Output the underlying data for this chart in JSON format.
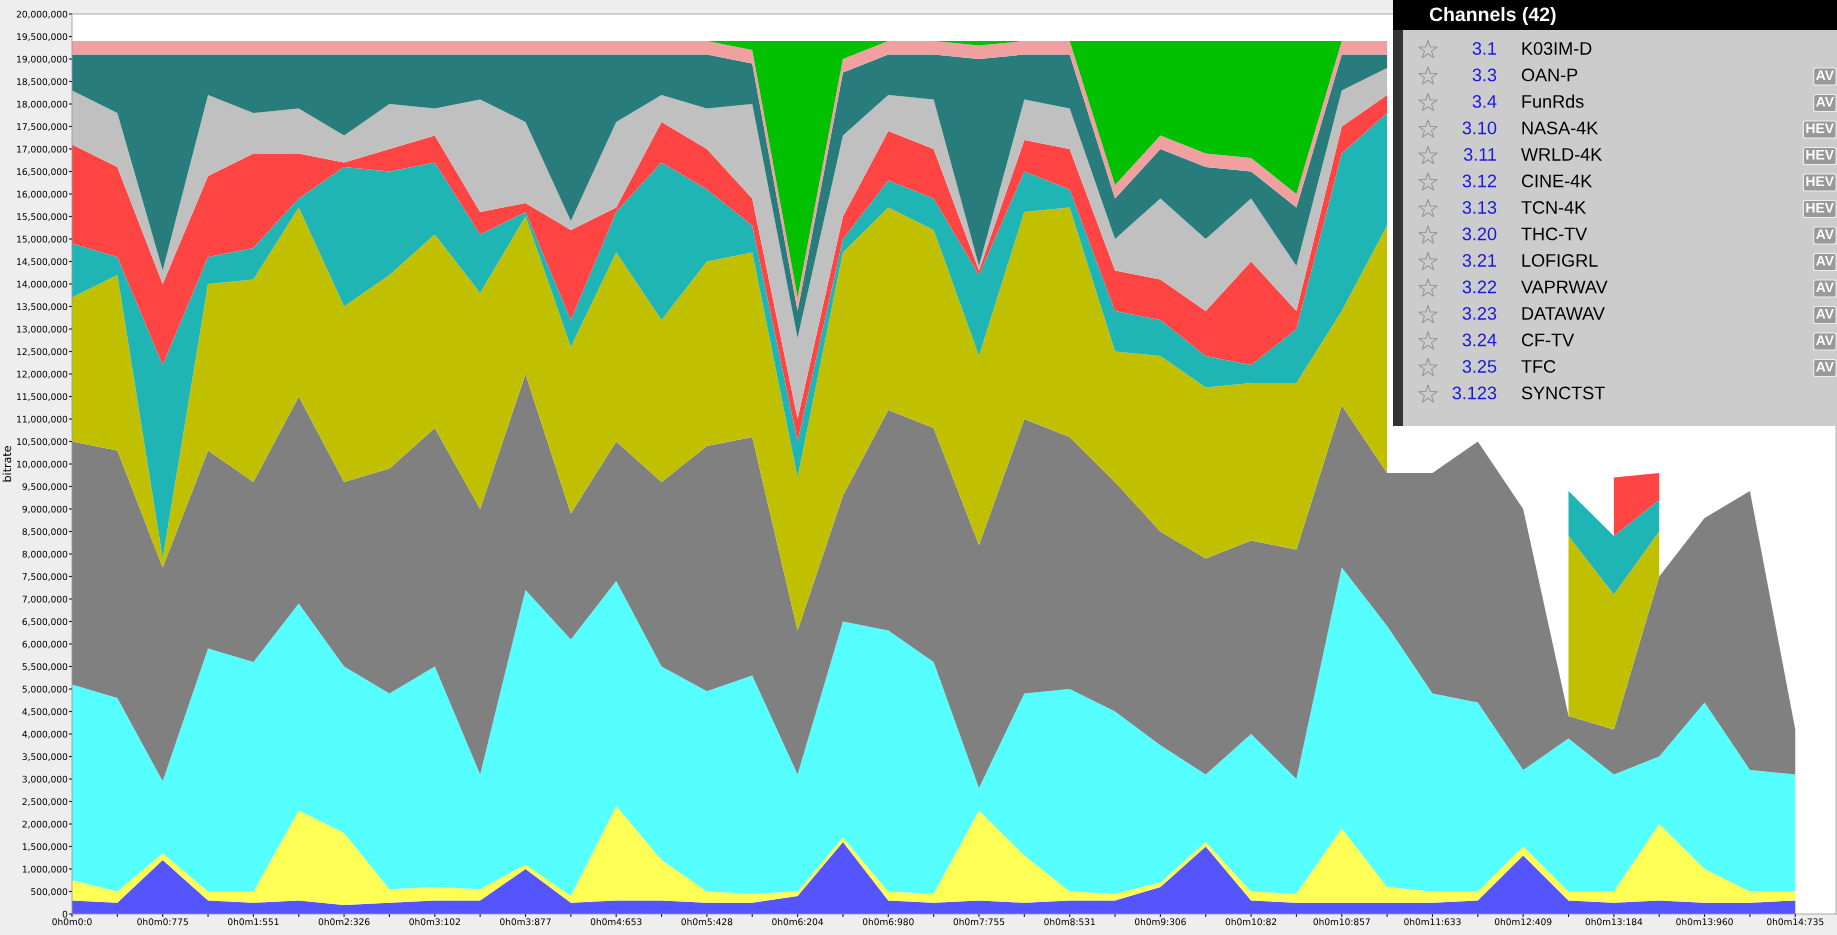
{
  "chart_data": {
    "type": "area",
    "stacked": true,
    "ylabel": "bitrate",
    "categories": [
      "0h0m0:0",
      null,
      "0h0m0:775",
      null,
      "0h0m1:551",
      null,
      "0h0m2:326",
      null,
      "0h0m3:102",
      null,
      "0h0m3:877",
      null,
      "0h0m4:653",
      null,
      "0h0m5:428",
      null,
      "0h0m6:204",
      null,
      "0h0m6:980",
      null,
      "0h0m7:755",
      null,
      "0h0m8:531",
      null,
      "0h0m9:306",
      null,
      "0h0m10:82",
      null,
      "0h0m10:857",
      null,
      "0h0m11:633",
      null,
      "0h0m12:409",
      null,
      "0h0m13:184",
      null,
      "0h0m13:960",
      null,
      "0h0m14:735"
    ],
    "ylim": [
      0,
      20000000
    ],
    "yticks": [
      0,
      {
        "value": 500000,
        "label": "500,000"
      },
      {
        "value": 1000000,
        "label": "1,000,000"
      },
      {
        "value": 1500000,
        "label": "1,500,000"
      },
      {
        "value": 2000000,
        "label": "2,000,000"
      },
      {
        "value": 2500000,
        "label": "2,500,000"
      },
      {
        "value": 3000000,
        "label": "3,000,000"
      },
      {
        "value": 3500000,
        "label": "3,500,000"
      },
      {
        "value": 4000000,
        "label": "4,000,000"
      },
      {
        "value": 4500000,
        "label": "4,500,000"
      },
      {
        "value": 5000000,
        "label": "5,000,000"
      },
      {
        "value": 5500000,
        "label": "5,500,000"
      },
      {
        "value": 6000000,
        "label": "6,000,000"
      },
      {
        "value": 6500000,
        "label": "6,500,000"
      },
      {
        "value": 7000000,
        "label": "7,000,000"
      },
      {
        "value": 7500000,
        "label": "7,500,000"
      },
      {
        "value": 8000000,
        "label": "8,000,000"
      },
      {
        "value": 8500000,
        "label": "8,500,000"
      },
      {
        "value": 9000000,
        "label": "9,000,000"
      },
      {
        "value": 9500000,
        "label": "9,500,000"
      },
      {
        "value": 10000000,
        "label": "10,000,000"
      },
      {
        "value": 10500000,
        "label": "10,500,000"
      },
      {
        "value": 11000000,
        "label": "11,000,000"
      },
      {
        "value": 11500000,
        "label": "11,500,000"
      },
      {
        "value": 12000000,
        "label": "12,000,000"
      },
      {
        "value": 12500000,
        "label": "12,500,000"
      },
      {
        "value": 13000000,
        "label": "13,000,000"
      },
      {
        "value": 13500000,
        "label": "13,500,000"
      },
      {
        "value": 14000000,
        "label": "14,000,000"
      },
      {
        "value": 14500000,
        "label": "14,500,000"
      },
      {
        "value": 15000000,
        "label": "15,000,000"
      },
      {
        "value": 15500000,
        "label": "15,500,000"
      },
      {
        "value": 16000000,
        "label": "16,000,000"
      },
      {
        "value": 16500000,
        "label": "16,500,000"
      },
      {
        "value": 17000000,
        "label": "17,000,000"
      },
      {
        "value": 17500000,
        "label": "17,500,000"
      },
      {
        "value": 18000000,
        "label": "18,000,000"
      },
      {
        "value": 18500000,
        "label": "18,500,000"
      },
      {
        "value": 19000000,
        "label": "19,000,000"
      },
      {
        "value": 19500000,
        "label": "19,500,000"
      },
      {
        "value": 20000000,
        "label": "20,000,000"
      }
    ],
    "series": [
      {
        "color": "#5555ff",
        "values": [
          300000,
          250000,
          1200000,
          300000,
          250000,
          300000,
          200000,
          250000,
          300000,
          300000,
          1000000,
          250000,
          300000,
          300000,
          250000,
          250000,
          400000,
          1600000,
          300000,
          250000,
          300000,
          250000,
          300000,
          300000,
          600000,
          1500000,
          300000,
          250000,
          250000,
          250000,
          250000,
          300000,
          1300000,
          300000,
          250000,
          300000,
          250000,
          250000,
          300000
        ]
      },
      {
        "color": "#ffff55",
        "values": [
          450000,
          250000,
          150000,
          200000,
          250000,
          2000000,
          1600000,
          300000,
          300000,
          250000,
          100000,
          150000,
          2100000,
          900000,
          250000,
          200000,
          100000,
          100000,
          200000,
          200000,
          2000000,
          1050000,
          200000,
          150000,
          100000,
          100000,
          200000,
          200000,
          1650000,
          350000,
          250000,
          200000,
          200000,
          200000,
          250000,
          1700000,
          750000,
          250000,
          200000
        ]
      },
      {
        "color": "#55ffff",
        "values": [
          4350000,
          4300000,
          1600000,
          5400000,
          5100000,
          4600000,
          3700000,
          4350000,
          4900000,
          2550000,
          6100000,
          5700000,
          5000000,
          4300000,
          4450000,
          4850000,
          2600000,
          4800000,
          5800000,
          5150000,
          500000,
          3600000,
          4500000,
          4050000,
          3050000,
          1500000,
          3500000,
          2550000,
          5800000,
          5800000,
          4400000,
          4200000,
          1700000,
          3400000,
          2600000,
          1500000,
          3700000,
          2700000,
          2600000
        ]
      },
      {
        "color": "#808080",
        "values": [
          5400000,
          5500000,
          4750000,
          4400000,
          4000000,
          4600000,
          4100000,
          5000000,
          5300000,
          5900000,
          4800000,
          2800000,
          3100000,
          4100000,
          5450000,
          5300000,
          3200000,
          2800000,
          4900000,
          5200000,
          5400000,
          6100000,
          5600000,
          5100000,
          4750000,
          4800000,
          4300000,
          5100000,
          3600000,
          3400000,
          4900000,
          5800000,
          5800000,
          500000,
          1000000,
          4000000,
          4100000,
          6200000,
          1000000
        ]
      },
      {
        "color": "#c0c000",
        "values": [
          3200000,
          3900000,
          200000,
          3700000,
          4500000,
          4200000,
          3900000,
          4300000,
          4300000,
          4800000,
          3500000,
          3700000,
          4200000,
          3600000,
          4100000,
          4100000,
          3400000,
          5400000,
          4500000,
          4400000,
          4200000,
          4600000,
          5100000,
          2900000,
          3900000,
          3800000,
          3500000,
          3700000,
          2100000,
          5500000,
          null,
          null,
          null,
          4000000,
          3000000,
          1000000,
          null,
          null,
          null
        ]
      },
      {
        "color": "#20b5b5",
        "values": [
          1200000,
          400000,
          4300000,
          600000,
          700000,
          200000,
          3100000,
          2300000,
          1600000,
          1300000,
          100000,
          600000,
          900000,
          3500000,
          1600000,
          600000,
          800000,
          300000,
          600000,
          700000,
          1800000,
          900000,
          400000,
          900000,
          800000,
          700000,
          400000,
          1200000,
          3500000,
          2500000,
          null,
          null,
          null,
          1000000,
          1300000,
          700000,
          null,
          null,
          null
        ]
      },
      {
        "color": "#ff4444",
        "values": [
          2200000,
          2000000,
          1800000,
          1800000,
          2100000,
          1000000,
          100000,
          500000,
          600000,
          500000,
          200000,
          2000000,
          100000,
          900000,
          900000,
          600000,
          500000,
          500000,
          1100000,
          1100000,
          100000,
          700000,
          900000,
          900000,
          900000,
          1000000,
          2300000,
          400000,
          600000,
          400000,
          null,
          null,
          null,
          null,
          1300000,
          600000,
          null,
          null,
          null
        ]
      },
      {
        "color": "#c0c0c0",
        "values": [
          1200000,
          1200000,
          300000,
          1800000,
          900000,
          1000000,
          600000,
          1000000,
          600000,
          2500000,
          1800000,
          200000,
          1900000,
          600000,
          900000,
          2100000,
          1800000,
          1800000,
          800000,
          1100000,
          100000,
          900000,
          900000,
          700000,
          1800000,
          1600000,
          1400000,
          1000000,
          800000,
          600000,
          null,
          null,
          null,
          null,
          null,
          null,
          null,
          null,
          null
        ]
      },
      {
        "color": "#287c7c",
        "values": [
          800000,
          1300000,
          4800000,
          900000,
          1300000,
          1200000,
          1800000,
          1100000,
          1200000,
          1000000,
          1500000,
          3700000,
          1500000,
          900000,
          1200000,
          900000,
          600000,
          1400000,
          900000,
          1000000,
          4600000,
          1000000,
          1200000,
          900000,
          1100000,
          1600000,
          600000,
          1300000,
          800000,
          300000,
          null,
          null,
          null,
          null,
          null,
          null,
          null,
          null,
          null
        ]
      },
      {
        "color": "#f0a0a0",
        "values": [
          300000,
          300000,
          300000,
          300000,
          300000,
          300000,
          300000,
          300000,
          300000,
          300000,
          300000,
          300000,
          300000,
          300000,
          300000,
          300000,
          300000,
          300000,
          300000,
          300000,
          300000,
          300000,
          300000,
          300000,
          300000,
          300000,
          300000,
          300000,
          300000,
          300000,
          null,
          null,
          null,
          null,
          null,
          null,
          null,
          null,
          null
        ]
      },
      {
        "color": "#00c000",
        "values": [
          0,
          0,
          0,
          0,
          0,
          0,
          0,
          0,
          0,
          0,
          0,
          0,
          0,
          0,
          0,
          200000,
          5700000,
          400000,
          0,
          0,
          100000,
          0,
          0,
          3200000,
          2100000,
          2500000,
          2600000,
          3400000,
          0,
          0,
          null,
          null,
          null,
          null,
          null,
          null,
          null,
          null,
          null
        ]
      }
    ],
    "annotations": [
      "Channels (42)",
      "3.1 K03IM-D",
      "3.3 OAN-P AV",
      "3.4 FunRds AV",
      "3.10 NASA-4K HEV",
      "3.11 WRLD-4K HEV",
      "3.12 CINE-4K HEV",
      "3.13 TCN-4K HEV",
      "3.20 THC-TV AV",
      "3.21 LOFIGRL AV",
      "3.22 VAPRWAV AV",
      "3.23 DATAWAV AV",
      "3.24 CF-TV AV",
      "3.25 TFC AV",
      "3.123 SYNCTST"
    ]
  }
}
